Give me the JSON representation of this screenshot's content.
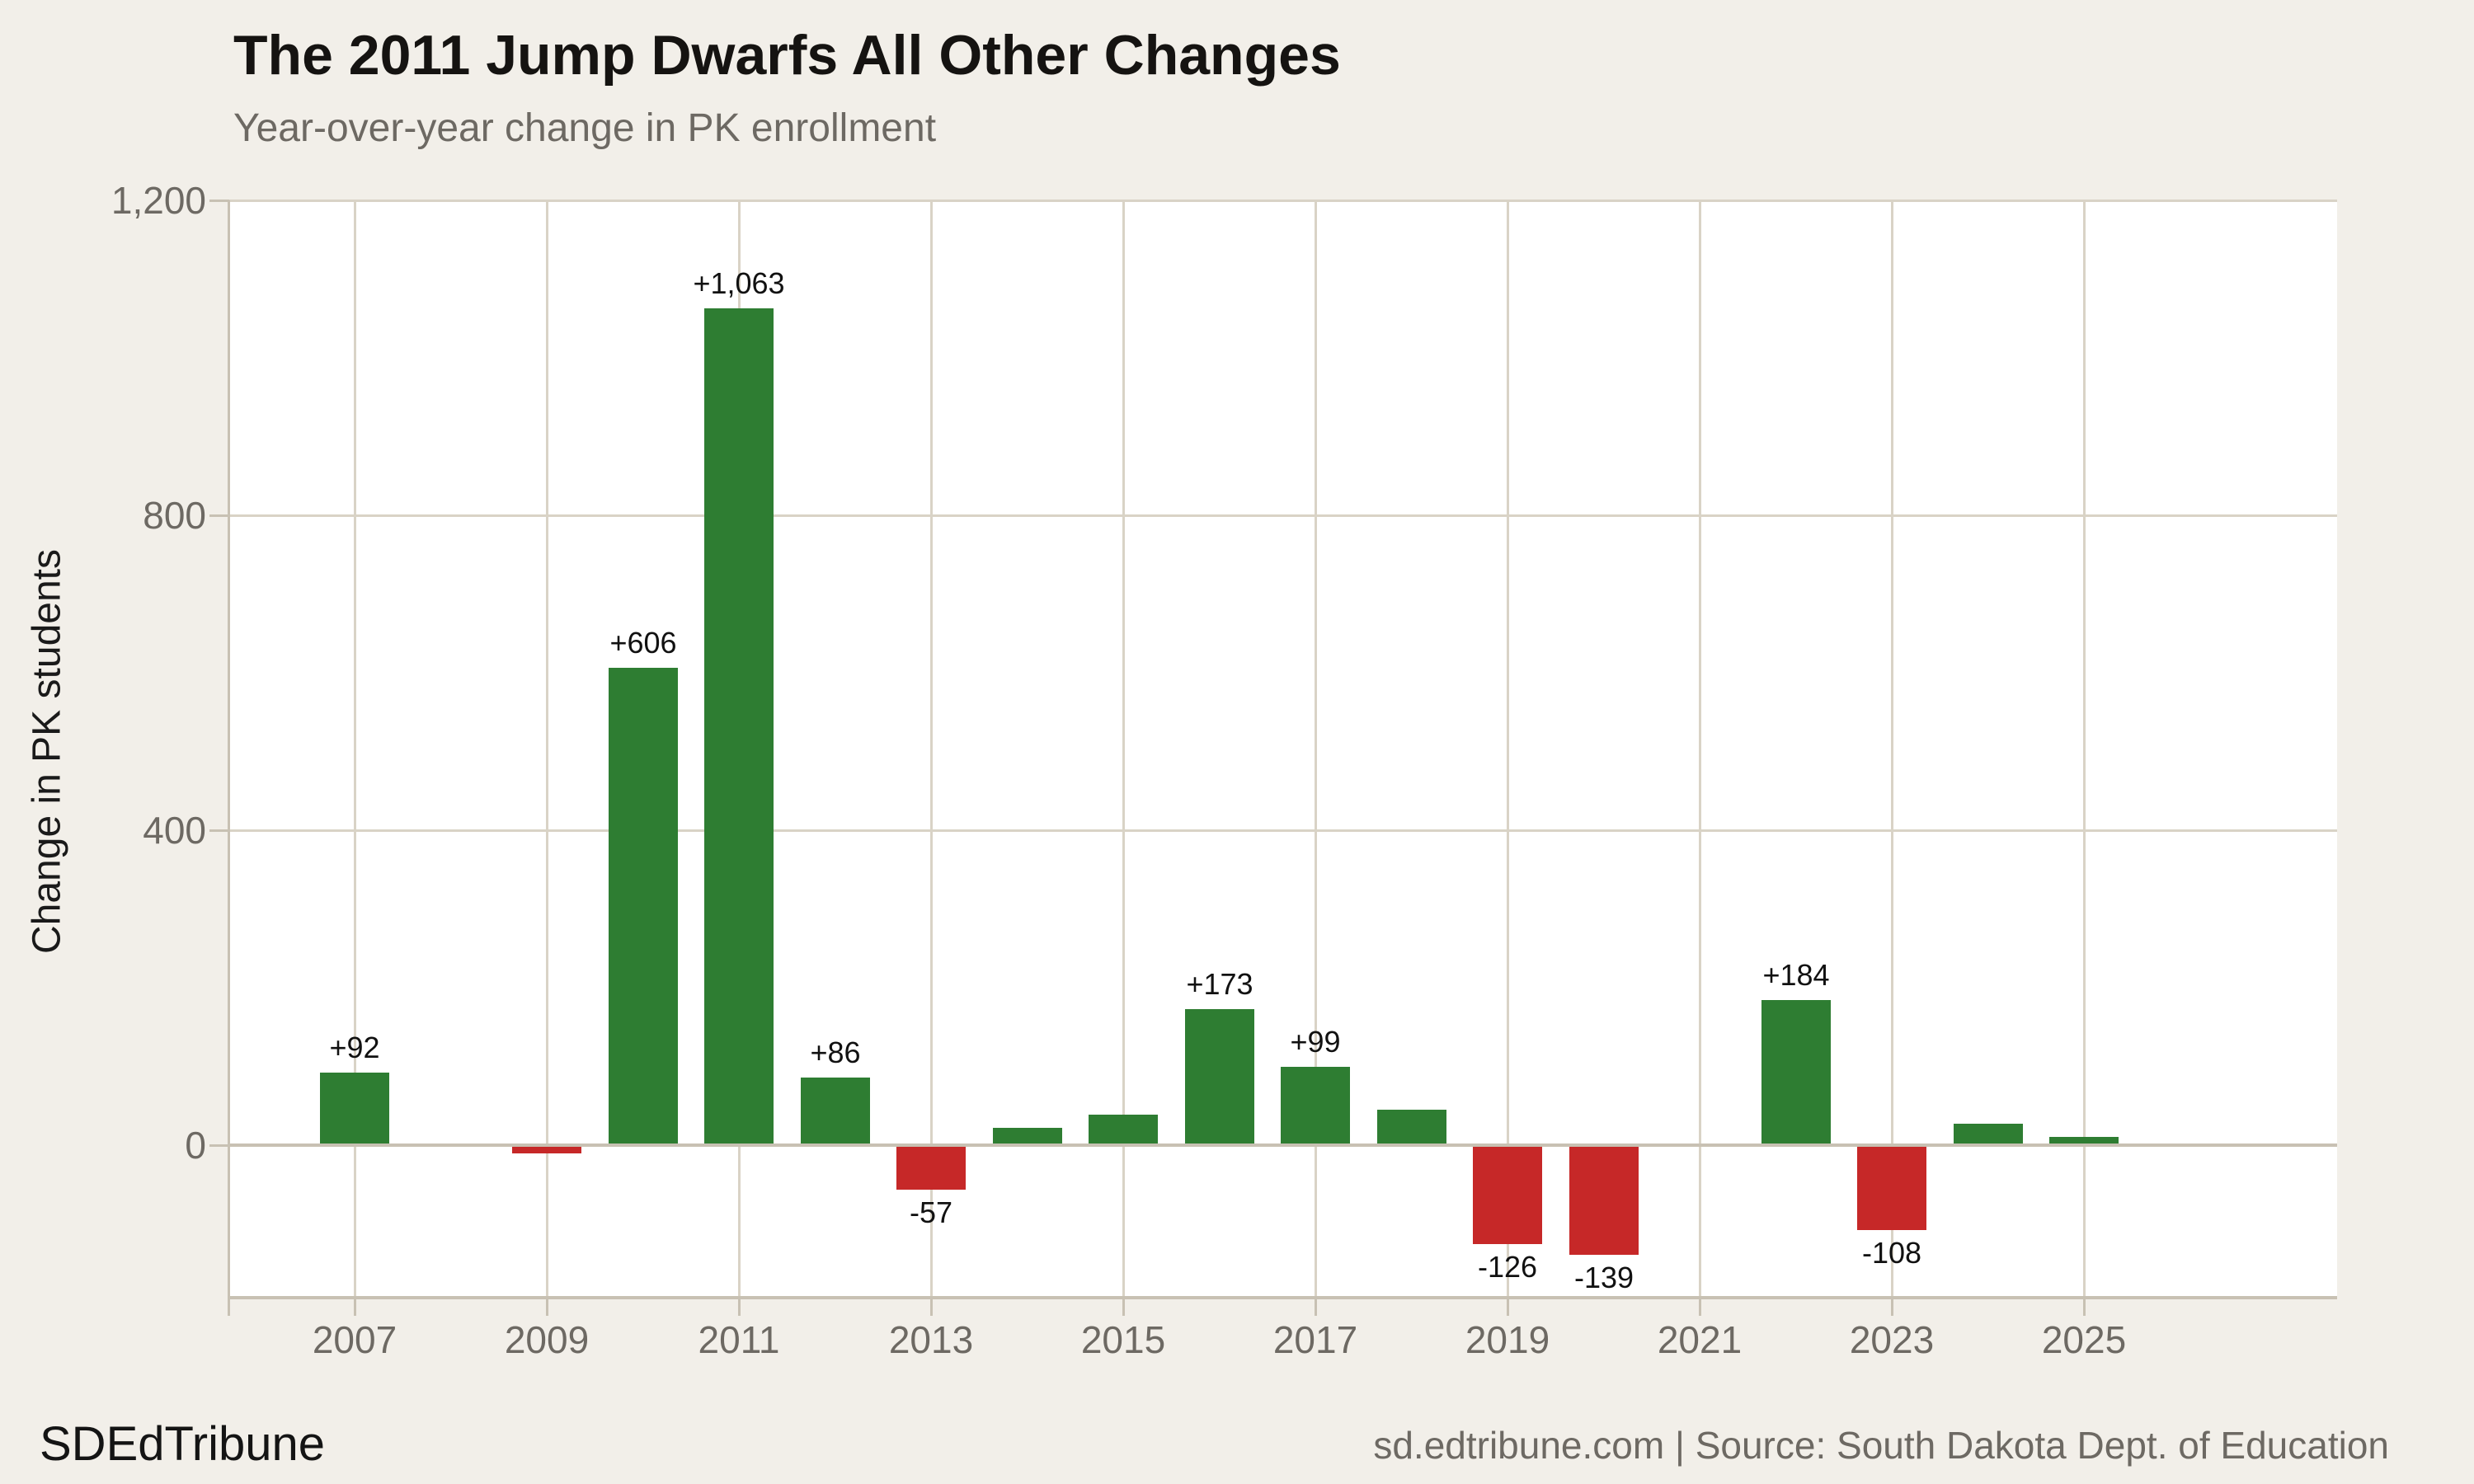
{
  "header": {
    "title": "The 2011 Jump Dwarfs All Other Changes",
    "subtitle": "Year-over-year change in PK enrollment"
  },
  "footer": {
    "brand": "SDEdTribune",
    "source": "sd.edtribune.com | Source: South Dakota Dept. of Education"
  },
  "chart_data": {
    "type": "bar",
    "title": "The 2011 Jump Dwarfs All Other Changes",
    "subtitle": "Year-over-year change in PK enrollment",
    "ylabel": "Change in PK students",
    "xlabel": "",
    "categories": [
      2007,
      2008,
      2009,
      2010,
      2011,
      2012,
      2013,
      2014,
      2015,
      2016,
      2017,
      2018,
      2019,
      2020,
      2021,
      2022,
      2023,
      2024,
      2025
    ],
    "values": [
      92,
      0,
      -10,
      606,
      1063,
      86,
      -57,
      22,
      38,
      173,
      99,
      45,
      -126,
      -139,
      0,
      184,
      -108,
      27,
      10
    ],
    "bar_labels": [
      "+92",
      null,
      null,
      "+606",
      "+1,063",
      "+86",
      "-57",
      null,
      null,
      "+173",
      "+99",
      null,
      "-126",
      "-139",
      null,
      "+184",
      "-108",
      null,
      null
    ],
    "ylim": [
      -194,
      1200
    ],
    "yticks": [
      0,
      400,
      800,
      1200
    ],
    "ytick_labels": [
      "0",
      "400",
      "800",
      "1,200"
    ],
    "xticks": [
      2007,
      2009,
      2011,
      2013,
      2015,
      2017,
      2019,
      2021,
      2023,
      2025
    ],
    "xtick_labels": [
      "2007",
      "2009",
      "2011",
      "2013",
      "2015",
      "2017",
      "2019",
      "2021",
      "2023",
      "2025"
    ],
    "grid": "on",
    "legend": "none",
    "colors": {
      "positive": "#2e7d32",
      "negative": "#c62828",
      "background": "#f2efe9",
      "plot_background": "#ffffff",
      "gridline": "#d9d3c6",
      "axis": "#c8c1b3",
      "tick_text": "#6d6963"
    }
  }
}
